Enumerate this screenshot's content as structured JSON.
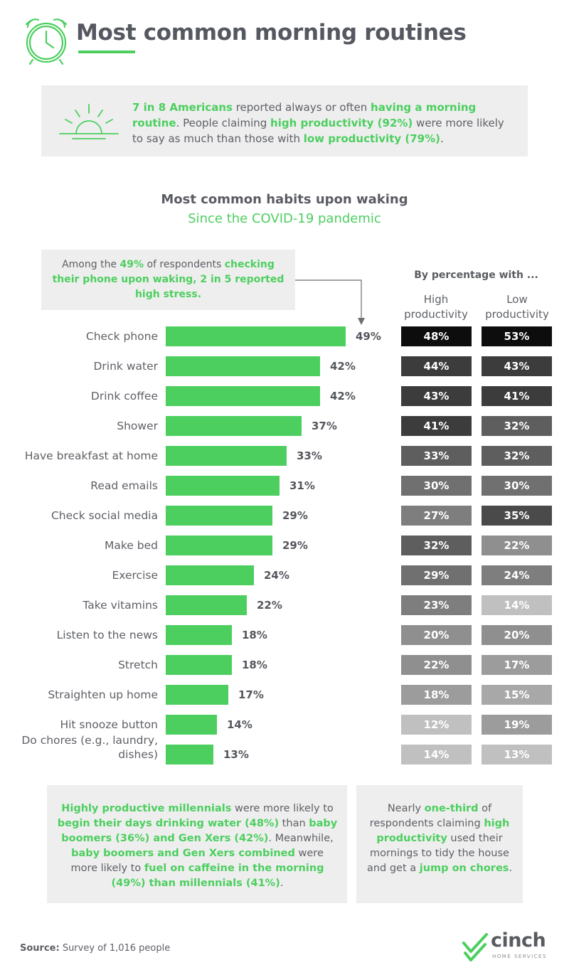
{
  "header": {
    "title": "Most common morning routines",
    "icon": "alarm-clock-icon"
  },
  "intro": {
    "icon": "sunrise-icon",
    "parts": [
      {
        "text": "7 in 8 Americans",
        "bold": true
      },
      {
        "text": " reported always or often ",
        "bold": false
      },
      {
        "text": "having a morning routine",
        "bold": true
      },
      {
        "text": ". People claiming ",
        "bold": false
      },
      {
        "text": "high productivity (92%)",
        "bold": true
      },
      {
        "text": " were more likely to say as much than those with ",
        "bold": false
      },
      {
        "text": "low productivity (79%)",
        "bold": true
      },
      {
        "text": ".",
        "bold": false
      }
    ]
  },
  "callout": {
    "parts": [
      {
        "text": "Among the ",
        "bold": false
      },
      {
        "text": "49%",
        "bold": true
      },
      {
        "text": " of respondents ",
        "bold": false
      },
      {
        "text": "checking their phone upon waking, 2 in 5 reported high stress.",
        "bold": true
      }
    ]
  },
  "table_header": {
    "by_percentage": "By percentage with ...",
    "high": "High productivity",
    "low": "Low productivity"
  },
  "colors": {
    "green": "#4ccf5f",
    "text": "#5e6066"
  },
  "chart_data": {
    "type": "bar",
    "title": "Most common habits upon waking",
    "subtitle": "Since the COVID-19 pandemic",
    "value_suffix": "%",
    "xlim": [
      0,
      65
    ],
    "categories": [
      "Check phone",
      "Drink water",
      "Drink coffee",
      "Shower",
      "Have breakfast at home",
      "Read emails",
      "Check social media",
      "Make bed",
      "Exercise",
      "Take vitamins",
      "Listen to the news",
      "Stretch",
      "Straighten up home",
      "Hit snooze button",
      "Do chores (e.g., laundry, dishes)"
    ],
    "values": [
      49,
      42,
      42,
      37,
      33,
      31,
      29,
      29,
      24,
      22,
      18,
      18,
      17,
      14,
      13
    ],
    "series": [
      {
        "name": "High productivity",
        "values": [
          48,
          44,
          43,
          41,
          33,
          30,
          27,
          32,
          29,
          23,
          20,
          22,
          18,
          12,
          14
        ]
      },
      {
        "name": "Low productivity",
        "values": [
          53,
          43,
          41,
          32,
          32,
          30,
          35,
          22,
          24,
          14,
          20,
          17,
          15,
          19,
          13
        ]
      }
    ]
  },
  "notes": {
    "left": [
      {
        "text": "Highly productive millennials",
        "bold": true
      },
      {
        "text": " were more likely to ",
        "bold": false
      },
      {
        "text": "begin their days drinking water (48%)",
        "bold": true
      },
      {
        "text": " than ",
        "bold": false
      },
      {
        "text": "baby boomers (36%) and Gen Xers (42%)",
        "bold": true
      },
      {
        "text": ". Meanwhile, ",
        "bold": false
      },
      {
        "text": "baby boomers and Gen Xers combined",
        "bold": true
      },
      {
        "text": " were more likely to ",
        "bold": false
      },
      {
        "text": "fuel on caffeine in the morning (49%) than millennials (41%)",
        "bold": true
      },
      {
        "text": ".",
        "bold": false
      }
    ],
    "right": [
      {
        "text": "Nearly ",
        "bold": false
      },
      {
        "text": "one-third",
        "bold": true
      },
      {
        "text": " of respondents claiming ",
        "bold": false
      },
      {
        "text": "high productivity",
        "bold": true
      },
      {
        "text": " used their mornings to tidy the house and get a ",
        "bold": false
      },
      {
        "text": "jump on chores",
        "bold": true
      },
      {
        "text": ".",
        "bold": false
      }
    ]
  },
  "footer": {
    "source_label": "Source:",
    "source_text": " Survey of 1,016 people",
    "logo_word": "cinch",
    "logo_sub": "HOME SERVICES"
  }
}
